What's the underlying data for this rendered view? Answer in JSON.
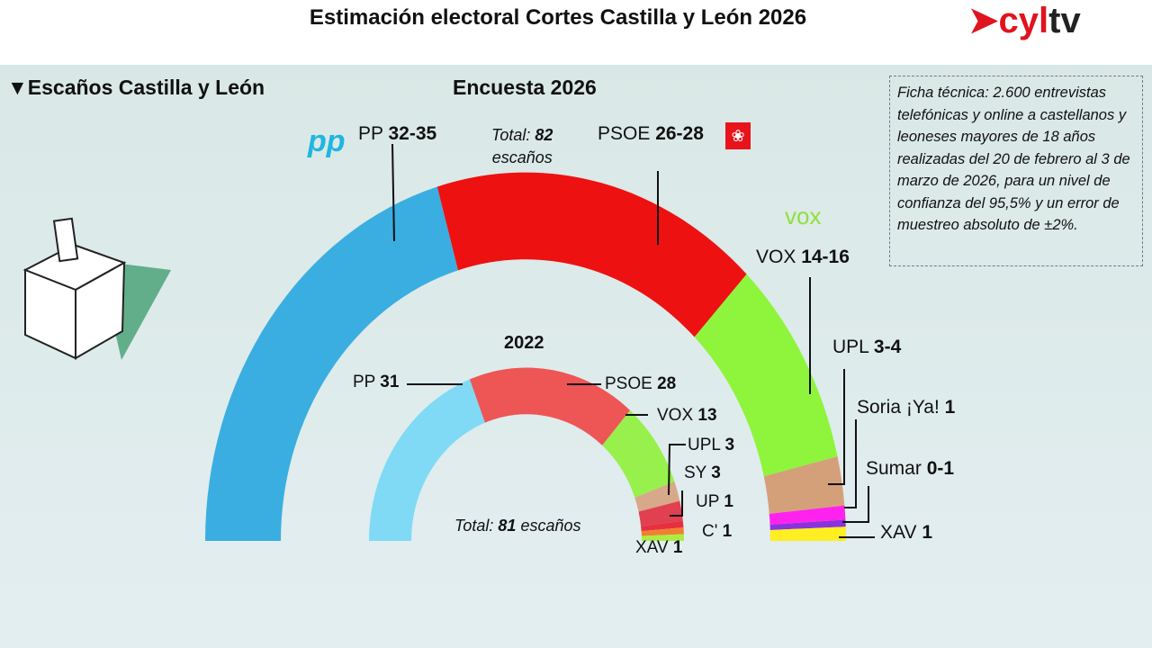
{
  "title": "Estimación electoral Cortes Castilla y León 2026",
  "logo": {
    "part1": "cyl",
    "part2": "tv"
  },
  "section_label": "▼Escaños Castilla y León",
  "ficha": "Ficha técnica: 2.600 entrevistas telefónicas y online a castellanos y leoneses mayores de 18 años realizadas del 20 de febrero al 3 de marzo de 2026, para un nivel de confianza del 95,5% y un error de muestreo absoluto de ±2%.",
  "chart_data": [
    {
      "type": "hemicycle",
      "title": "Encuesta 2026",
      "total_label": "Total:",
      "total": "82",
      "total_unit": "escaños",
      "parties": [
        {
          "name": "PP",
          "seats": "32-35",
          "value": 33.5,
          "color": "#3aaee0"
        },
        {
          "name": "PSOE",
          "seats": "26-28",
          "value": 27,
          "color": "#ee1111"
        },
        {
          "name": "VOX",
          "seats": "14-16",
          "value": 15,
          "color": "#8ef53c"
        },
        {
          "name": "UPL",
          "seats": "3-4",
          "value": 3.5,
          "color": "#d4a07a"
        },
        {
          "name": "Soria ¡Ya!",
          "seats": "1",
          "value": 1,
          "color": "#ff22ee"
        },
        {
          "name": "Sumar",
          "seats": "0-1",
          "value": 0.5,
          "color": "#8a33dd"
        },
        {
          "name": "XAV",
          "seats": "1",
          "value": 1,
          "color": "#ffee22"
        }
      ]
    },
    {
      "type": "hemicycle",
      "title": "2022",
      "total_label": "Total:",
      "total": "81",
      "total_unit": "escaños",
      "parties": [
        {
          "name": "PP",
          "seats": "31",
          "value": 31,
          "color": "#80daf5"
        },
        {
          "name": "PSOE",
          "seats": "28",
          "value": 28,
          "color": "#ee5555"
        },
        {
          "name": "VOX",
          "seats": "13",
          "value": 13,
          "color": "#98f04c"
        },
        {
          "name": "UPL",
          "seats": "3",
          "value": 3,
          "color": "#d8a88a"
        },
        {
          "name": "SY",
          "seats": "3",
          "value": 3,
          "color": "#e04050"
        },
        {
          "name": "UP",
          "seats": "1",
          "value": 1,
          "color": "#e63040"
        },
        {
          "name": "C'",
          "seats": "1",
          "value": 1,
          "color": "#f08030"
        },
        {
          "name": "XAV",
          "seats": "1",
          "value": 1,
          "color": "#aaee44"
        }
      ]
    }
  ],
  "logos": {
    "pp": "pp",
    "vox": "vox"
  }
}
